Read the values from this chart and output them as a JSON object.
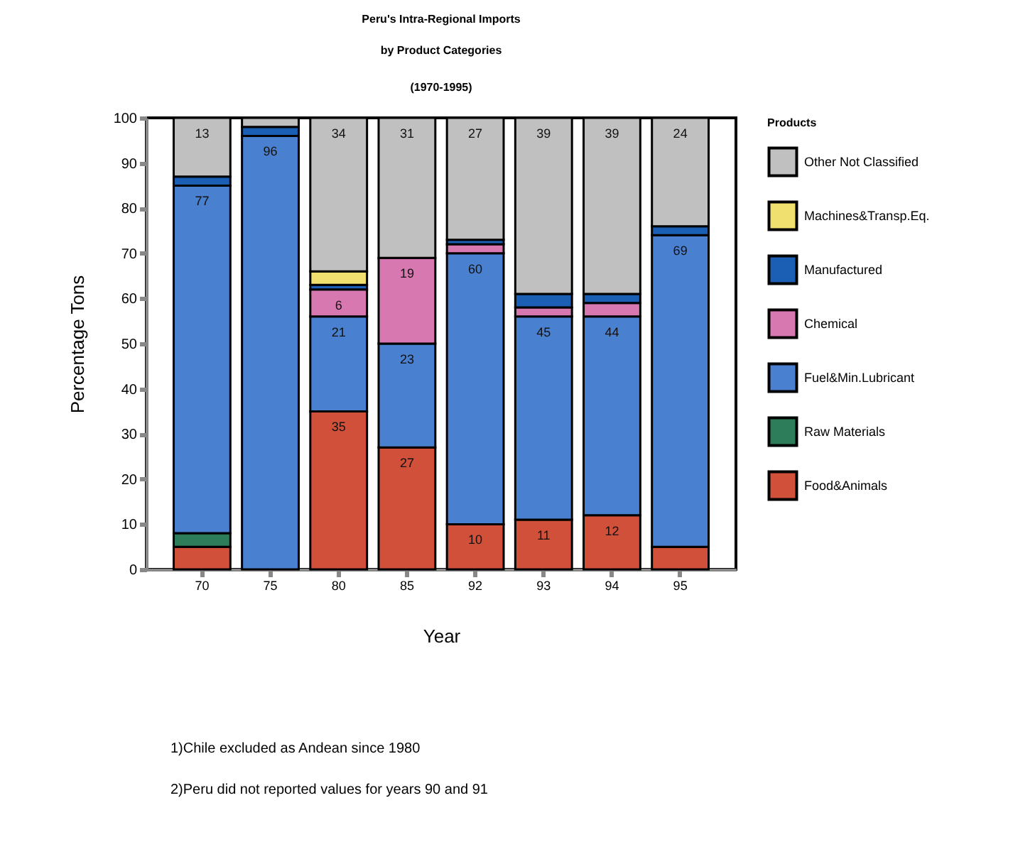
{
  "chart_data": {
    "type": "bar",
    "stacked": true,
    "title": "Peru's Intra-Regional Imports",
    "subtitle": "by Product Categories",
    "xlabel": "Year",
    "ylabel": "Percentage Tons",
    "legend_title": "Products",
    "legend": "right",
    "annotations": [
      "(1970-1995)",
      "1)Chile excluded as Andean since 1980",
      "2)Peru did not reported values for years 90 and 91"
    ],
    "categories": [
      "70",
      "75",
      "80",
      "85",
      "92",
      "93",
      "94",
      "95"
    ],
    "ylim": [
      0,
      100
    ],
    "yticks": [
      0,
      10,
      20,
      30,
      40,
      50,
      60,
      70,
      80,
      90,
      100
    ],
    "grid": false,
    "series": [
      {
        "name": "Food&Animals",
        "color": "#d0503a",
        "values": [
          5,
          0,
          35,
          27,
          10,
          11,
          12,
          5
        ],
        "value_labels": [
          null,
          null,
          "35",
          "27",
          "10",
          "11",
          "12",
          null
        ]
      },
      {
        "name": "Raw Materials",
        "color": "#2e7d5a",
        "values": [
          3,
          0,
          0,
          0,
          0,
          0,
          0,
          0
        ]
      },
      {
        "name": "Fuel&Min.Lubricant",
        "color": "#4a80d0",
        "values": [
          77,
          96,
          21,
          23,
          60,
          45,
          44,
          69
        ],
        "value_labels": [
          "77",
          "96",
          "21",
          "23",
          "60",
          "45",
          "44",
          "69"
        ]
      },
      {
        "name": "Chemical",
        "color": "#d878b0",
        "values": [
          0,
          0,
          6,
          19,
          2,
          2,
          3,
          0
        ],
        "value_labels": [
          null,
          null,
          "6",
          "19",
          null,
          null,
          null,
          null
        ]
      },
      {
        "name": "Manufactured",
        "color": "#1a5fb4",
        "values": [
          2,
          2,
          1,
          0,
          1,
          3,
          2,
          2
        ]
      },
      {
        "name": "Machines&Transp.Eq.",
        "color": "#f0e070",
        "values": [
          0,
          0,
          3,
          0,
          0,
          0,
          0,
          0
        ]
      },
      {
        "name": "Other Not Classified",
        "color": "#c0c0c0",
        "values": [
          13,
          2,
          34,
          31,
          27,
          39,
          39,
          24
        ],
        "value_labels": [
          "13",
          null,
          "34",
          "31",
          "27",
          "39",
          "39",
          "24"
        ]
      }
    ]
  }
}
